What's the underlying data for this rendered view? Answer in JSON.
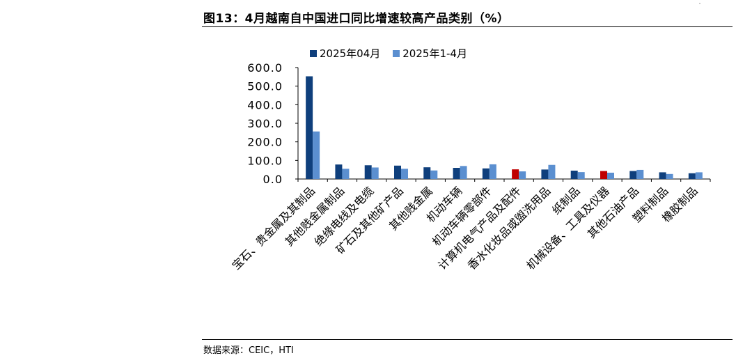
{
  "figure": {
    "title": "图13：4月越南自中国进口同比增速较高产品类别（%）",
    "source": "数据来源：CEIC，HTI"
  },
  "colors": {
    "series_dark": "#0f3f7c",
    "series_light": "#5b8fd0",
    "highlight": "#c00000",
    "axis": "#000000"
  },
  "chart_data": {
    "type": "bar",
    "title": "",
    "xlabel": "",
    "ylabel": "",
    "ylim": [
      0,
      600
    ],
    "yticks": [
      "600.0",
      "500.0",
      "400.0",
      "300.0",
      "200.0",
      "100.0",
      "0.0"
    ],
    "ytick_values": [
      600,
      500,
      400,
      300,
      200,
      100,
      0
    ],
    "grid": false,
    "legend_position": "top",
    "categories": [
      "宝石、贵金属及其制品",
      "其他贱金属制品",
      "绝缘电线及电缆",
      "矿石及其他矿产品",
      "其他贱金属",
      "机动车辆",
      "机动车辆零部件",
      "计算机电气产品及配件",
      "香水化妆品或盥洗用品",
      "纸制品",
      "机械设备、工具及仪器",
      "其他石油产品",
      "塑料制品",
      "橡胶制品"
    ],
    "series": [
      {
        "name": "2025年04月",
        "values": [
          553,
          78,
          74,
          72,
          63,
          60,
          57,
          52,
          51,
          45,
          43,
          43,
          36,
          31
        ],
        "highlight_indices": [
          7,
          10
        ]
      },
      {
        "name": "2025年1-4月",
        "values": [
          256,
          55,
          62,
          55,
          46,
          70,
          79,
          41,
          76,
          37,
          34,
          49,
          27,
          36
        ]
      }
    ]
  }
}
